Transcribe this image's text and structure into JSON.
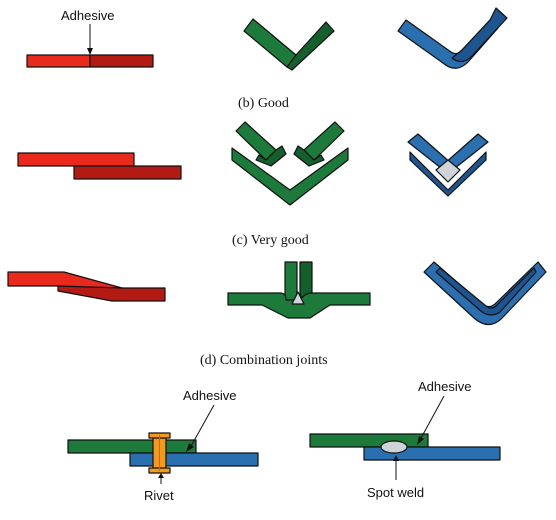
{
  "colors": {
    "red": "#e8291c",
    "red_dark": "#b41a14",
    "green": "#1c7a3a",
    "green_dark": "#14602c",
    "blue": "#2a6fb0",
    "blue_dark": "#1d5590",
    "orange": "#f39a1e",
    "fill_gray": "#cfd4d8"
  },
  "labels": {
    "adhesive_top": "Adhesive",
    "caption_b": "(b)  Good",
    "caption_c": "(c)  Very good",
    "caption_d": "(d)  Combination joints",
    "adhesive_left": "Adhesive",
    "rivet": "Rivet",
    "adhesive_right": "Adhesive",
    "spot_weld": "Spot  weld"
  }
}
